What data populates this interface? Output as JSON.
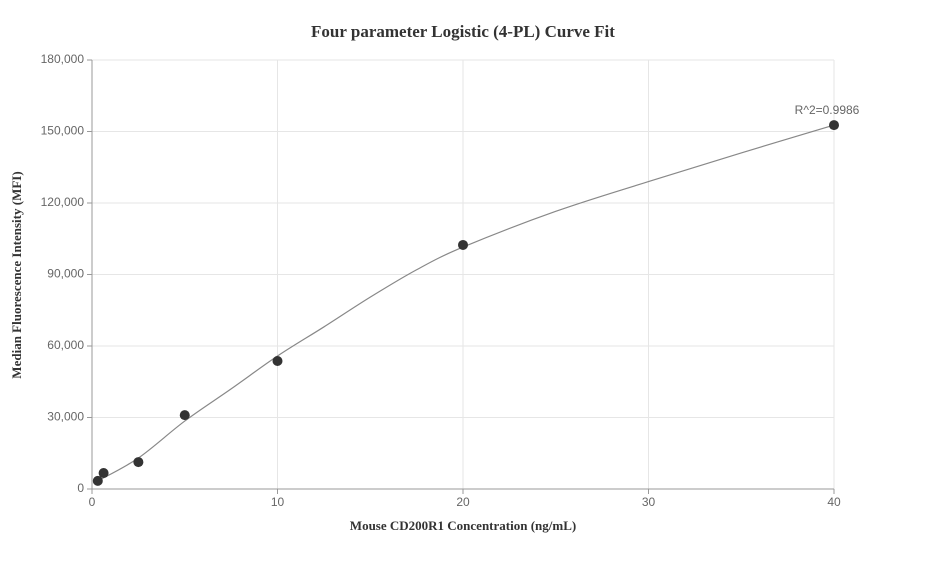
{
  "chart_data": {
    "type": "scatter",
    "title": "Four parameter Logistic (4-PL) Curve Fit",
    "x_label": "Mouse CD200R1 Concentration (ng/mL)",
    "y_label": "Median Fluorescence Intensity (MFI)",
    "annotation": "R^2=0.9986",
    "xlim": [
      0,
      40
    ],
    "xticks": [
      0,
      10,
      20,
      30,
      40
    ],
    "ylim": [
      0,
      180000
    ],
    "yticks": [
      0,
      {
        "value": 30000,
        "label": "30,000"
      },
      {
        "value": 60000,
        "label": "60,000"
      },
      {
        "value": 90000,
        "label": "90,000"
      },
      {
        "value": 120000,
        "label": "120,000"
      },
      {
        "value": 150000,
        "label": "150,000"
      },
      {
        "value": 180000,
        "label": "180,000"
      }
    ],
    "grid": true,
    "series": [
      {
        "type": "scatter",
        "color": "#333333",
        "x": [
          0.3125,
          0.625,
          2.5,
          5,
          10,
          20,
          40
        ],
        "values": [
          3400,
          6700,
          11300,
          31000,
          53700,
          102400,
          152700
        ]
      },
      {
        "type": "line",
        "color": "#888888",
        "x": [
          0.3125,
          2.5,
          5,
          7.5,
          10,
          12.5,
          15,
          17.5,
          20,
          25,
          30,
          35,
          40
        ],
        "values": [
          3400,
          13000,
          28500,
          42000,
          55800,
          68000,
          80500,
          92000,
          101500,
          116500,
          129000,
          141000,
          152700
        ]
      }
    ]
  }
}
